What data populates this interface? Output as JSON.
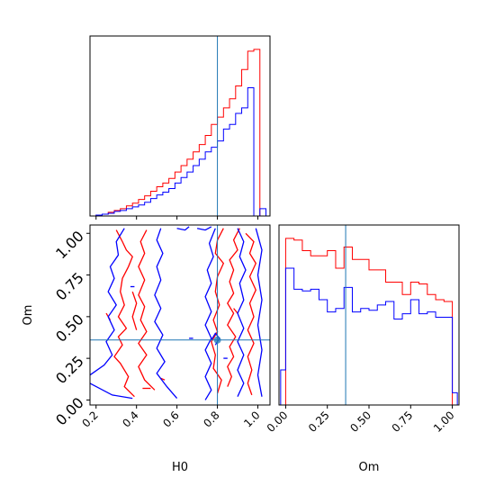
{
  "colors": {
    "series_a": "#ff0000",
    "series_b": "#0000ff",
    "truth": "#1f77b4",
    "axes": "#000000"
  },
  "truth": {
    "H0": 0.8,
    "Om": 0.36
  },
  "chart_data": [
    {
      "id": "hist-H0",
      "type": "histogram",
      "title": "",
      "xlabel": "",
      "ylabel": "",
      "xlim": [
        0.17,
        1.06
      ],
      "bin_edges": [
        0.17,
        0.2,
        0.23,
        0.26,
        0.29,
        0.32,
        0.35,
        0.38,
        0.41,
        0.44,
        0.47,
        0.5,
        0.53,
        0.56,
        0.59,
        0.62,
        0.65,
        0.68,
        0.71,
        0.74,
        0.77,
        0.8,
        0.83,
        0.86,
        0.89,
        0.92,
        0.95,
        0.98,
        1.01,
        1.04
      ],
      "series": [
        {
          "color": "#ff0000",
          "values": [
            0,
            1,
            2,
            4,
            6,
            8,
            11,
            14,
            18,
            22,
            27,
            32,
            36,
            41,
            48,
            55,
            62,
            70,
            78,
            88,
            100,
            108,
            118,
            128,
            142,
            160,
            180,
            182,
            0
          ]
        },
        {
          "color": "#0000ff",
          "values": [
            0,
            1,
            2,
            3,
            5,
            6,
            8,
            10,
            12,
            15,
            19,
            23,
            26,
            30,
            36,
            42,
            48,
            55,
            62,
            70,
            75,
            82,
            95,
            100,
            112,
            118,
            140,
            0,
            8
          ]
        }
      ],
      "truth_x": 0.8
    },
    {
      "id": "hist-Om",
      "type": "histogram",
      "title": "",
      "xlabel": "Om",
      "ylabel": "",
      "xlim": [
        -0.04,
        1.04
      ],
      "xticks": [
        "0.00",
        "0.25",
        "0.50",
        "0.75",
        "1.00"
      ],
      "bin_edges": [
        -0.03,
        0.0,
        0.05,
        0.1,
        0.15,
        0.2,
        0.25,
        0.3,
        0.35,
        0.4,
        0.45,
        0.5,
        0.55,
        0.6,
        0.65,
        0.7,
        0.75,
        0.8,
        0.85,
        0.9,
        0.95,
        1.0,
        1.03
      ],
      "series": [
        {
          "color": "#ff0000",
          "values": [
            0,
            95,
            94,
            88,
            85,
            85,
            88,
            78,
            90,
            83,
            83,
            77,
            77,
            70,
            70,
            63,
            70,
            69,
            63,
            60,
            59,
            0
          ]
        },
        {
          "color": "#0000ff",
          "values": [
            20,
            78,
            66,
            65,
            66,
            60,
            53,
            55,
            67,
            53,
            55,
            54,
            57,
            59,
            49,
            52,
            60,
            52,
            53,
            50,
            50,
            7
          ]
        }
      ],
      "truth_x": 0.36
    },
    {
      "id": "contour-H0-Om",
      "type": "contour",
      "title": "",
      "xlabel": "H0",
      "ylabel": "Om",
      "xlim": [
        0.17,
        1.06
      ],
      "ylim": [
        -0.03,
        1.05
      ],
      "xticks": [
        "0.2",
        "0.4",
        "0.6",
        "0.8",
        "1.0"
      ],
      "yticks": [
        "0.00",
        "0.25",
        "0.50",
        "0.75",
        "1.00"
      ],
      "series": [
        {
          "color": "#ff0000",
          "lines": [
            [
              [
                0.3,
                1.02
              ],
              [
                0.33,
                0.95
              ],
              [
                0.35,
                0.9
              ],
              [
                0.38,
                0.86
              ],
              [
                0.36,
                0.8
              ],
              [
                0.33,
                0.73
              ],
              [
                0.32,
                0.65
              ],
              [
                0.34,
                0.57
              ],
              [
                0.31,
                0.5
              ],
              [
                0.35,
                0.43
              ],
              [
                0.31,
                0.38
              ],
              [
                0.33,
                0.33
              ],
              [
                0.29,
                0.26
              ],
              [
                0.32,
                0.22
              ],
              [
                0.36,
                0.14
              ],
              [
                0.34,
                0.08
              ],
              [
                0.39,
                0.02
              ]
            ],
            [
              [
                0.45,
                1.02
              ],
              [
                0.42,
                0.95
              ],
              [
                0.44,
                0.88
              ],
              [
                0.41,
                0.8
              ],
              [
                0.44,
                0.72
              ],
              [
                0.41,
                0.63
              ],
              [
                0.44,
                0.56
              ],
              [
                0.42,
                0.48
              ],
              [
                0.45,
                0.41
              ],
              [
                0.41,
                0.34
              ],
              [
                0.45,
                0.27
              ],
              [
                0.41,
                0.2
              ],
              [
                0.44,
                0.12
              ],
              [
                0.49,
                0.06
              ]
            ],
            [
              [
                0.38,
                0.65
              ],
              [
                0.4,
                0.58
              ],
              [
                0.38,
                0.5
              ],
              [
                0.4,
                0.42
              ]
            ],
            [
              [
                0.83,
                1.03
              ],
              [
                0.8,
                0.96
              ],
              [
                0.79,
                0.88
              ],
              [
                0.83,
                0.82
              ],
              [
                0.8,
                0.74
              ],
              [
                0.79,
                0.65
              ],
              [
                0.81,
                0.57
              ],
              [
                0.78,
                0.48
              ],
              [
                0.8,
                0.41
              ],
              [
                0.77,
                0.35
              ],
              [
                0.79,
                0.27
              ],
              [
                0.78,
                0.19
              ],
              [
                0.82,
                0.12
              ],
              [
                0.8,
                0.04
              ]
            ],
            [
              [
                0.91,
                1.03
              ],
              [
                0.88,
                0.96
              ],
              [
                0.9,
                0.9
              ],
              [
                0.86,
                0.84
              ],
              [
                0.88,
                0.78
              ],
              [
                0.86,
                0.71
              ],
              [
                0.88,
                0.64
              ],
              [
                0.85,
                0.58
              ],
              [
                0.88,
                0.52
              ],
              [
                0.85,
                0.45
              ],
              [
                0.89,
                0.38
              ],
              [
                0.86,
                0.32
              ],
              [
                0.88,
                0.26
              ],
              [
                0.85,
                0.2
              ],
              [
                0.87,
                0.14
              ],
              [
                0.85,
                0.08
              ]
            ],
            [
              [
                0.94,
                1.0
              ],
              [
                0.98,
                0.95
              ],
              [
                0.96,
                0.88
              ],
              [
                0.99,
                0.82
              ],
              [
                0.96,
                0.74
              ],
              [
                0.99,
                0.66
              ],
              [
                0.96,
                0.58
              ],
              [
                0.98,
                0.5
              ],
              [
                0.95,
                0.42
              ],
              [
                0.98,
                0.34
              ],
              [
                0.95,
                0.26
              ],
              [
                0.97,
                0.18
              ],
              [
                0.95,
                0.1
              ],
              [
                0.97,
                0.03
              ]
            ],
            [
              [
                0.25,
                0.52
              ],
              [
                0.27,
                0.48
              ]
            ],
            [
              [
                0.52,
                0.13
              ],
              [
                0.54,
                0.12
              ]
            ],
            [
              [
                0.43,
                0.07
              ],
              [
                0.47,
                0.07
              ]
            ],
            [
              [
                0.88,
                0.55
              ],
              [
                0.9,
                0.52
              ]
            ]
          ]
        },
        {
          "color": "#0000ff",
          "lines": [
            [
              [
                0.34,
                1.03
              ],
              [
                0.3,
                0.95
              ],
              [
                0.31,
                0.87
              ],
              [
                0.27,
                0.8
              ],
              [
                0.29,
                0.73
              ],
              [
                0.26,
                0.65
              ],
              [
                0.3,
                0.57
              ],
              [
                0.26,
                0.5
              ],
              [
                0.29,
                0.42
              ],
              [
                0.25,
                0.35
              ],
              [
                0.28,
                0.27
              ],
              [
                0.24,
                0.21
              ],
              [
                0.17,
                0.15
              ]
            ],
            [
              [
                0.52,
                1.03
              ],
              [
                0.5,
                0.96
              ],
              [
                0.53,
                0.88
              ],
              [
                0.5,
                0.8
              ],
              [
                0.52,
                0.72
              ],
              [
                0.49,
                0.63
              ],
              [
                0.52,
                0.55
              ],
              [
                0.49,
                0.47
              ],
              [
                0.53,
                0.39
              ],
              [
                0.5,
                0.31
              ],
              [
                0.54,
                0.23
              ],
              [
                0.5,
                0.16
              ],
              [
                0.55,
                0.08
              ],
              [
                0.6,
                0.01
              ]
            ],
            [
              [
                0.17,
                0.1
              ],
              [
                0.28,
                0.03
              ],
              [
                0.38,
                0.01
              ]
            ],
            [
              [
                0.6,
                1.03
              ],
              [
                0.64,
                1.02
              ],
              [
                0.66,
                1.04
              ]
            ],
            [
              [
                0.7,
                1.03
              ],
              [
                0.74,
                1.02
              ],
              [
                0.77,
                1.04
              ]
            ],
            [
              [
                0.79,
                1.03
              ],
              [
                0.76,
                0.94
              ],
              [
                0.78,
                0.86
              ],
              [
                0.75,
                0.78
              ],
              [
                0.77,
                0.7
              ],
              [
                0.74,
                0.62
              ],
              [
                0.77,
                0.53
              ],
              [
                0.74,
                0.45
              ],
              [
                0.77,
                0.37
              ],
              [
                0.74,
                0.3
              ],
              [
                0.77,
                0.22
              ],
              [
                0.74,
                0.14
              ],
              [
                0.77,
                0.06
              ],
              [
                0.74,
                0.0
              ]
            ],
            [
              [
                0.9,
                1.03
              ],
              [
                0.93,
                0.95
              ],
              [
                0.91,
                0.86
              ],
              [
                0.94,
                0.78
              ],
              [
                0.91,
                0.7
              ],
              [
                0.93,
                0.6
              ],
              [
                0.9,
                0.52
              ],
              [
                0.93,
                0.43
              ],
              [
                0.9,
                0.35
              ],
              [
                0.93,
                0.27
              ],
              [
                0.9,
                0.18
              ],
              [
                0.93,
                0.1
              ],
              [
                0.9,
                0.02
              ]
            ],
            [
              [
                0.99,
                1.03
              ],
              [
                1.02,
                0.9
              ],
              [
                1.0,
                0.75
              ],
              [
                1.02,
                0.6
              ],
              [
                1.0,
                0.45
              ],
              [
                1.02,
                0.3
              ],
              [
                1.0,
                0.15
              ],
              [
                1.02,
                0.02
              ]
            ],
            [
              [
                0.37,
                0.68
              ],
              [
                0.39,
                0.68
              ]
            ],
            [
              [
                0.77,
                0.36
              ],
              [
                0.79,
                0.4
              ],
              [
                0.81,
                0.37
              ],
              [
                0.79,
                0.33
              ]
            ],
            [
              [
                0.66,
                0.37
              ],
              [
                0.68,
                0.37
              ]
            ],
            [
              [
                0.83,
                0.25
              ],
              [
                0.85,
                0.25
              ]
            ]
          ]
        }
      ],
      "truth_x": 0.8,
      "truth_y": 0.36
    }
  ]
}
